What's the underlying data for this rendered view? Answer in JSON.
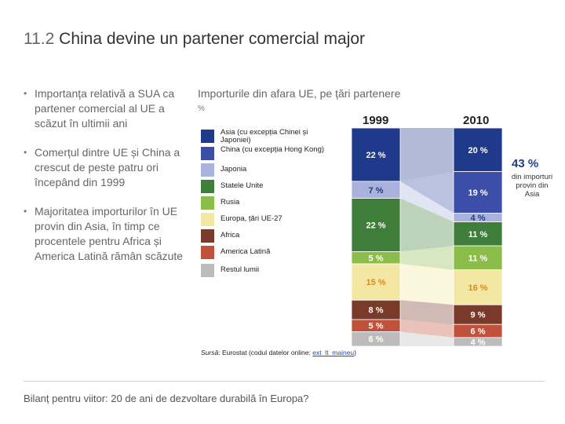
{
  "slide": {
    "title_number": "11.2",
    "title_text": "China devine un partener comercial major",
    "footer": "Bilanț pentru viitor: 20 de ani de dezvoltare durabilă în Europa?"
  },
  "bullets": [
    "Importanța relativă a SUA ca partener comercial al UE a scăzut în ultimii ani",
    "Comerțul dintre UE și China a crescut de peste patru ori începând din 1999",
    "Majoritatea importurilor în UE provin din Asia, în timp ce procentele pentru Africa și America Latină rămân scăzute"
  ],
  "chart": {
    "title": "Importurile din afara UE, pe țări partenere",
    "unit": "%",
    "source_prefix": "Sursă",
    "source_text": ": Eurostat (codul datelor online: ",
    "source_link": "ext_lt_maineu",
    "source_suffix": ")",
    "annotation_value": "43 %",
    "annotation_text": "din importuri provin din Asia"
  },
  "chart_data": {
    "type": "bar",
    "stacked": true,
    "categories": [
      "1999",
      "2010"
    ],
    "series": [
      {
        "name": "Asia (cu excepția Chinei și Japoniei)",
        "values": [
          22,
          20
        ],
        "color": "#1f3a8a"
      },
      {
        "name": "China (cu excepția Hong Kong)",
        "values": [
          0,
          19
        ],
        "color": "#3b4fa8"
      },
      {
        "name": "Japonia",
        "values": [
          7,
          4
        ],
        "color": "#a9b2dc"
      },
      {
        "name": "Statele Unite",
        "values": [
          22,
          11
        ],
        "color": "#3f7d3a"
      },
      {
        "name": "Rusia",
        "values": [
          5,
          11
        ],
        "color": "#8bbd4a"
      },
      {
        "name": "Europa, țări UE-27",
        "values": [
          15,
          16
        ],
        "color": "#f3e7a3"
      },
      {
        "name": "Africa",
        "values": [
          8,
          9
        ],
        "color": "#7a3a2a"
      },
      {
        "name": "America Latină",
        "values": [
          5,
          6
        ],
        "color": "#c0513a"
      },
      {
        "name": "Restul lumii",
        "values": [
          6,
          4
        ],
        "color": "#bcbcbc"
      }
    ],
    "legend_position": "left"
  }
}
